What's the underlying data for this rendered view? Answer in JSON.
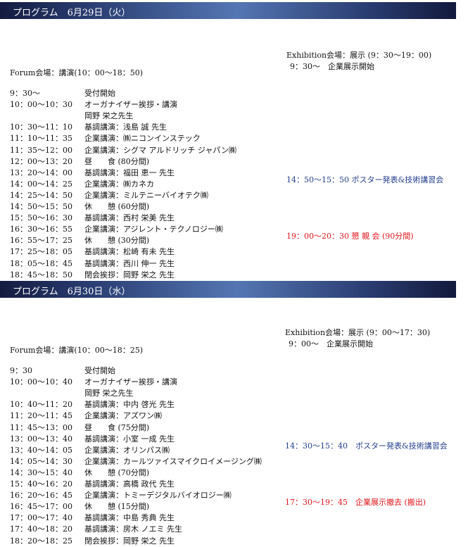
{
  "days": [
    {
      "title": "プログラム　6月29日（火）",
      "forum_header": "Forum会場：講演(10：00～18：50)",
      "schedule": [
        {
          "time": "9：30～",
          "content": "受付開始"
        },
        {
          "time": "10：00～10：30",
          "content": "オーガナイザー挨拶・講演"
        },
        {
          "time": "",
          "content": "岡野 栄之先生"
        },
        {
          "time": "10：30～11：10",
          "content": "基調講演：浅島 誠 先生"
        },
        {
          "time": "11：10～11：35",
          "content": "企業講演：㈱ニコンインステック"
        },
        {
          "time": "11：35～12：00",
          "content": "企業講演：シグマ アルドリッチ ジャパン㈱"
        },
        {
          "time": "12：00～13：20",
          "content": "昼　　食 (80分間)"
        },
        {
          "time": "13：20～14：00",
          "content": "基調講演：福田 恵一 先生"
        },
        {
          "time": "14：00～14：25",
          "content": "企業講演：㈱カネカ"
        },
        {
          "time": "14：25～14：50",
          "content": "企業講演：ミルテニーバイオテク㈱"
        },
        {
          "time": "14：50～15：50",
          "content": "休　　憩 (60分間)"
        },
        {
          "time": "15：50～16：30",
          "content": "基調講演：西村 栄美 先生"
        },
        {
          "time": "16：30～16：55",
          "content": "企業講演：アジレント・テクノロジー㈱"
        },
        {
          "time": "16：55～17：25",
          "content": "休　　憩 (30分間)"
        },
        {
          "time": "17：25～18：05",
          "content": "基調講演：松崎 有未 先生"
        },
        {
          "time": "18：05～18：45",
          "content": "基調講演：西川 伸一 先生"
        },
        {
          "time": "18：45～18：50",
          "content": "閉会挨拶：岡野 栄之 先生"
        }
      ],
      "exhibition_header": "Exhibition会場：展示 (9：30～19：00)",
      "exhibition_start": "9：30～　企業展示開始",
      "poster": "14：50～15：50 ポスター発表&技術講習会",
      "closing": "19：00～20：30 懇 親 会 (90分間)"
    },
    {
      "title": "プログラム　6月30日（水）",
      "forum_header": "Forum会場：講演(10：00～18：25)",
      "schedule": [
        {
          "time": "9：30",
          "content": "受付開始"
        },
        {
          "time": "10：00～10：40",
          "content": "オーガナイザー挨拶・講演"
        },
        {
          "time": "",
          "content": "岡野 栄之先生"
        },
        {
          "time": "10：40～11：20",
          "content": "基調講演：中内 啓光 先生"
        },
        {
          "time": "11：20～11：45",
          "content": "企業講演：アズワン㈱"
        },
        {
          "time": "11：45～13：00",
          "content": "昼　　食 (75分間)"
        },
        {
          "time": "13：00～13：40",
          "content": "基調講演：小室 一成 先生"
        },
        {
          "time": "13：40～14：05",
          "content": "企業講演：オリンパス㈱"
        },
        {
          "time": "14：05～14：30",
          "content": "企業講演：カールツァイスマイクロイメージング㈱"
        },
        {
          "time": "14：30～15：40",
          "content": "休　　憩 (70分間)"
        },
        {
          "time": "15：40～16：20",
          "content": "基調講演：高橋 政代 先生"
        },
        {
          "time": "16：20～16：45",
          "content": "企業講演：トミーデジタルバイオロジー㈱"
        },
        {
          "time": "16：45～17：00",
          "content": "休　　憩 (15分間)"
        },
        {
          "time": "17：00～17：40",
          "content": "基調講演：中島 秀典 先生"
        },
        {
          "time": "17：40～18：20",
          "content": "基調講演：房木 ノエミ 先生"
        },
        {
          "time": "18：20～18：25",
          "content": "閉会挨拶：岡野 栄之 先生"
        }
      ],
      "exhibition_header": "Exhibition会場：展示 (9：00～17：30)",
      "exhibition_start": "9：00～　企業展示開始",
      "poster": "14：30～15：40　ポスター発表&技術講習会",
      "closing": "17：30～19：45　企業展示撤去 (搬出)"
    }
  ],
  "colors": {
    "poster_text": "#24408e",
    "closing_text": "#e0141b",
    "banner": "#283a6e"
  }
}
